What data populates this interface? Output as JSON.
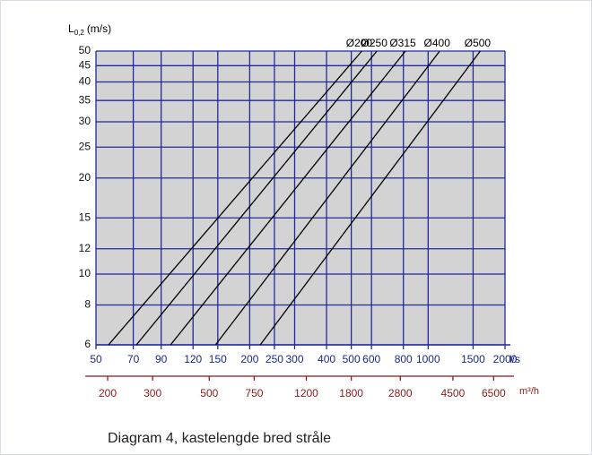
{
  "chart_data": {
    "type": "line",
    "ylabel_symbol": "L",
    "ylabel_subscript": "0,2",
    "ylabel_unit": "(m/s)",
    "xlabel": "l/s",
    "x2label": "m³/h",
    "caption": "Diagram 4, kastelengde bred stråle",
    "xlog": true,
    "ylog": true,
    "grid": true,
    "xlim": [
      50,
      2000
    ],
    "xticks": [
      50,
      70,
      90,
      120,
      150,
      200,
      250,
      300,
      400,
      500,
      600,
      800,
      1000,
      1500,
      2000
    ],
    "x2lim": [
      180,
      7200
    ],
    "x2ticks": [
      200,
      300,
      500,
      750,
      1200,
      1800,
      2800,
      4500,
      6500
    ],
    "ylim": [
      6,
      50
    ],
    "yticks": [
      6,
      8,
      10,
      12,
      15,
      20,
      25,
      30,
      35,
      40,
      45,
      50
    ],
    "series": [
      {
        "name": "Ø200",
        "color": "#000000",
        "x": [
          56,
          550
        ],
        "values": [
          6,
          50
        ]
      },
      {
        "name": "Ø250",
        "color": "#000000",
        "x": [
          72,
          630
        ],
        "values": [
          6,
          50
        ]
      },
      {
        "name": "Ø315",
        "color": "#000000",
        "x": [
          98,
          815
        ],
        "values": [
          6,
          50
        ]
      },
      {
        "name": "Ø400",
        "color": "#000000",
        "x": [
          147,
          1110
        ],
        "values": [
          6,
          50
        ]
      },
      {
        "name": "Ø500",
        "color": "#000000",
        "x": [
          220,
          1600
        ],
        "values": [
          6,
          50
        ]
      }
    ]
  }
}
